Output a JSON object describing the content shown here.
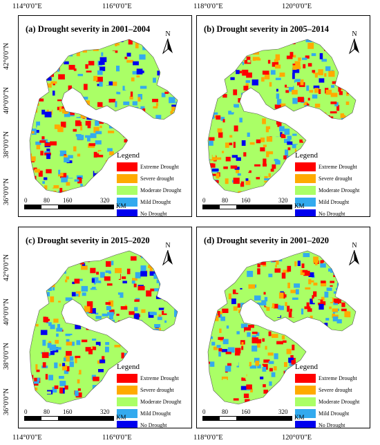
{
  "axes": {
    "top_ticks": [
      "114°0'0\"E",
      "116°0'0\"E",
      "118°0'0\"E",
      "120°0'0\"E"
    ],
    "bottom_ticks": [
      "114°0'0\"E",
      "116°0'0\"E",
      "118°0'0\"E",
      "120°0'0\"E"
    ],
    "left_ticks": [
      "42°0'0\"N",
      "40°0'0\"N",
      "38°0'0\"N",
      "36°0'0\"N"
    ]
  },
  "panels": [
    {
      "title": "(a)  Drought severity in 2001–2004"
    },
    {
      "title": "(b)  Drought severity in 2005–2014"
    },
    {
      "title": "(c)  Drought severity in 2015–2020"
    },
    {
      "title": "(d)  Drought severity in 2001–2020"
    }
  ],
  "north_letter": "N",
  "legend": {
    "title": "Legend",
    "items": [
      {
        "label": "Extreme Drought",
        "color": "#ff0000"
      },
      {
        "label": "Severe drought",
        "color": "#ffaa00"
      },
      {
        "label": "Moderate Drought",
        "color": "#aaff66"
      },
      {
        "label": "Mild Drought",
        "color": "#33aaee"
      },
      {
        "label": "No Drought",
        "color": "#0000ee"
      }
    ]
  },
  "scale": {
    "labels": [
      "0",
      "80",
      "160",
      "320"
    ],
    "unit": "KM"
  }
}
